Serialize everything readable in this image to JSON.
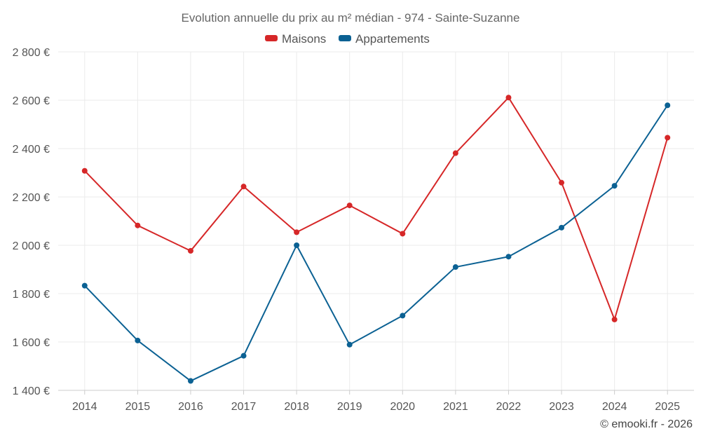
{
  "chart_data": {
    "type": "line",
    "title": "Evolution annuelle du prix au m² médian - 974 - Sainte-Suzanne",
    "categories": [
      "2014",
      "2015",
      "2016",
      "2017",
      "2018",
      "2019",
      "2020",
      "2021",
      "2022",
      "2023",
      "2024",
      "2025"
    ],
    "series": [
      {
        "name": "Maisons",
        "color": "#d62728",
        "values": [
          2308,
          2082,
          1977,
          2243,
          2054,
          2165,
          2048,
          2381,
          2611,
          2259,
          1693,
          2445
        ]
      },
      {
        "name": "Appartements",
        "color": "#0b6193",
        "values": [
          1833,
          1606,
          1439,
          1543,
          2000,
          1589,
          1709,
          1910,
          1953,
          2073,
          2246,
          2579
        ]
      }
    ],
    "ylim": [
      1400,
      2800
    ],
    "yticks": [
      1400,
      1600,
      1800,
      2000,
      2200,
      2400,
      2600,
      2800
    ],
    "ytick_labels": [
      "1 400 €",
      "1 600 €",
      "1 800 €",
      "2 000 €",
      "2 200 €",
      "2 400 €",
      "2 600 €",
      "2 800 €"
    ],
    "legend_position": "top-center",
    "grid": true,
    "xlabel": "",
    "ylabel": ""
  },
  "credit": "© emooki.fr - 2026"
}
